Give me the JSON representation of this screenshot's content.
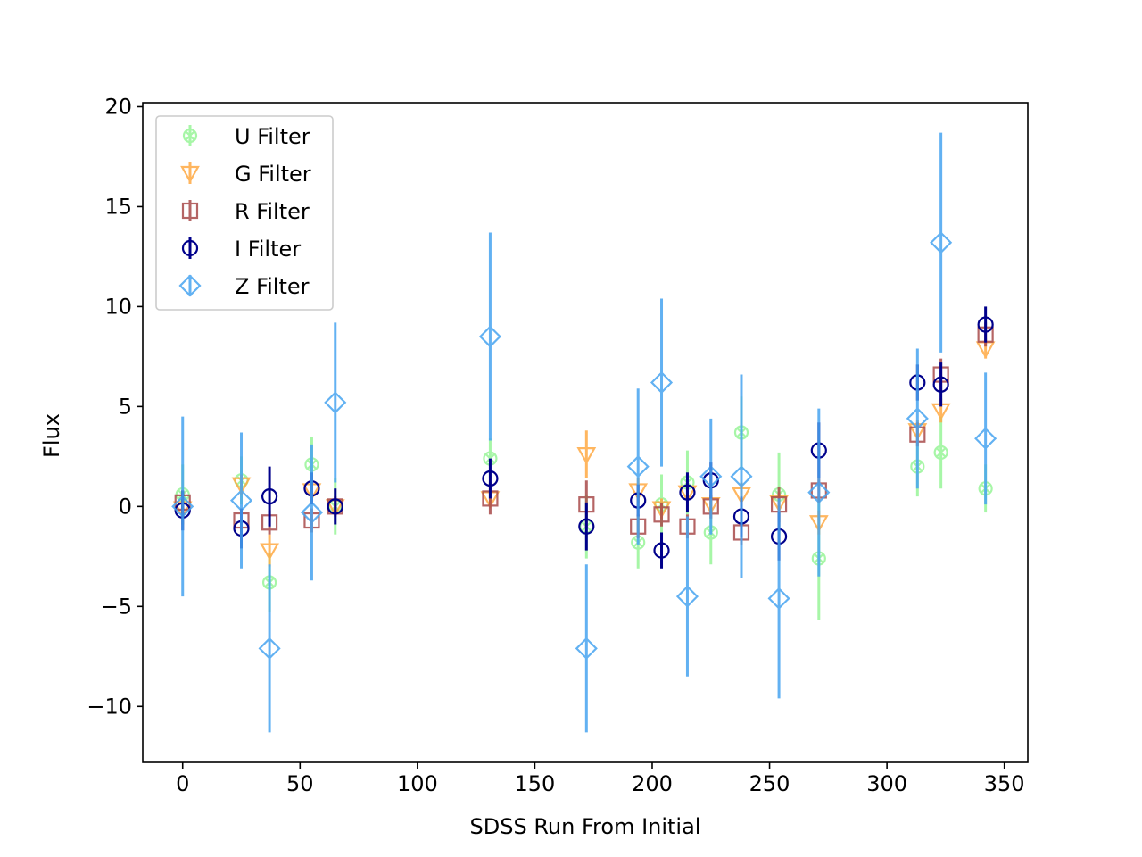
{
  "chart_data": {
    "type": "scatter",
    "title": "",
    "xlabel": "SDSS Run From Initial",
    "ylabel": "Flux",
    "xlim": [
      -17,
      360
    ],
    "ylim": [
      -12.8,
      20.2
    ],
    "xticks": [
      0,
      50,
      100,
      150,
      200,
      250,
      300,
      350
    ],
    "yticks": [
      -10,
      -5,
      0,
      5,
      10,
      15,
      20
    ],
    "xtick_labels": [
      "0",
      "50",
      "100",
      "150",
      "200",
      "250",
      "300",
      "350"
    ],
    "ytick_labels": [
      "−10",
      "−5",
      "0",
      "5",
      "10",
      "15",
      "20"
    ],
    "grid": false,
    "legend_position": "upper left",
    "error_bars": true,
    "series": [
      {
        "name": "U Filter",
        "marker": "x-circle",
        "color": "#98f598",
        "alpha": 0.85,
        "points": [
          {
            "x": 0,
            "y": 0.6,
            "err": 1.5
          },
          {
            "x": 25,
            "y": 1.3,
            "err": 1.2
          },
          {
            "x": 37,
            "y": -3.8,
            "err": 1.5
          },
          {
            "x": 55,
            "y": 2.1,
            "err": 1.4
          },
          {
            "x": 65,
            "y": 0.0,
            "err": 1.4
          },
          {
            "x": 131,
            "y": 2.4,
            "err": 1.0
          },
          {
            "x": 172,
            "y": -1.0,
            "err": 1.6
          },
          {
            "x": 194,
            "y": -1.8,
            "err": 1.3
          },
          {
            "x": 204,
            "y": 0.1,
            "err": 1.5
          },
          {
            "x": 215,
            "y": 1.2,
            "err": 1.6
          },
          {
            "x": 225,
            "y": -1.3,
            "err": 1.6
          },
          {
            "x": 238,
            "y": 3.7,
            "err": 1.8
          },
          {
            "x": 254,
            "y": 0.6,
            "err": 2.1
          },
          {
            "x": 271,
            "y": -2.6,
            "err": 3.1
          },
          {
            "x": 313,
            "y": 2.0,
            "err": 1.5
          },
          {
            "x": 323,
            "y": 2.7,
            "err": 1.8
          },
          {
            "x": 342,
            "y": 0.9,
            "err": 1.2
          }
        ]
      },
      {
        "name": "G Filter",
        "marker": "triangle-down",
        "color": "#ffaa44",
        "alpha": 0.85,
        "points": [
          {
            "x": 0,
            "y": -0.1,
            "err": 0.5
          },
          {
            "x": 25,
            "y": 1.1,
            "err": 0.5
          },
          {
            "x": 37,
            "y": -2.2,
            "err": 0.8
          },
          {
            "x": 55,
            "y": 0.8,
            "err": 0.4
          },
          {
            "x": 65,
            "y": 0.0,
            "err": 0.4
          },
          {
            "x": 131,
            "y": 0.4,
            "err": 0.4
          },
          {
            "x": 172,
            "y": 2.6,
            "err": 1.2
          },
          {
            "x": 194,
            "y": 0.8,
            "err": 0.6
          },
          {
            "x": 204,
            "y": -0.1,
            "err": 0.5
          },
          {
            "x": 215,
            "y": 0.7,
            "err": 0.5
          },
          {
            "x": 225,
            "y": 0.1,
            "err": 0.5
          },
          {
            "x": 238,
            "y": 0.6,
            "err": 0.6
          },
          {
            "x": 254,
            "y": 0.2,
            "err": 0.5
          },
          {
            "x": 271,
            "y": -0.8,
            "err": 0.6
          },
          {
            "x": 313,
            "y": 3.8,
            "err": 0.5
          },
          {
            "x": 323,
            "y": 4.8,
            "err": 0.6
          },
          {
            "x": 342,
            "y": 7.9,
            "err": 0.5
          }
        ]
      },
      {
        "name": "R Filter",
        "marker": "square",
        "color": "#a94b4b",
        "alpha": 0.85,
        "points": [
          {
            "x": 0,
            "y": 0.2,
            "err": 0.6
          },
          {
            "x": 25,
            "y": -0.7,
            "err": 0.6
          },
          {
            "x": 37,
            "y": -0.8,
            "err": 0.6
          },
          {
            "x": 55,
            "y": -0.7,
            "err": 0.6
          },
          {
            "x": 65,
            "y": 0.0,
            "err": 0.5
          },
          {
            "x": 131,
            "y": 0.4,
            "err": 0.8
          },
          {
            "x": 172,
            "y": 0.1,
            "err": 1.2
          },
          {
            "x": 194,
            "y": -1.0,
            "err": 0.6
          },
          {
            "x": 204,
            "y": -0.4,
            "err": 0.6
          },
          {
            "x": 215,
            "y": -1.0,
            "err": 0.6
          },
          {
            "x": 225,
            "y": 0.0,
            "err": 0.6
          },
          {
            "x": 238,
            "y": -1.3,
            "err": 0.6
          },
          {
            "x": 254,
            "y": 0.1,
            "err": 0.9
          },
          {
            "x": 271,
            "y": 0.8,
            "err": 0.6
          },
          {
            "x": 313,
            "y": 3.6,
            "err": 0.6
          },
          {
            "x": 323,
            "y": 6.6,
            "err": 0.8
          },
          {
            "x": 342,
            "y": 8.6,
            "err": 0.6
          }
        ]
      },
      {
        "name": "I Filter",
        "marker": "circle",
        "color": "#00008b",
        "alpha": 1.0,
        "points": [
          {
            "x": 0,
            "y": -0.2,
            "err": 1.0
          },
          {
            "x": 25,
            "y": -1.1,
            "err": 1.0
          },
          {
            "x": 37,
            "y": 0.5,
            "err": 1.5
          },
          {
            "x": 55,
            "y": 0.9,
            "err": 0.8
          },
          {
            "x": 65,
            "y": 0.0,
            "err": 0.9
          },
          {
            "x": 131,
            "y": 1.4,
            "err": 1.0
          },
          {
            "x": 172,
            "y": -1.0,
            "err": 1.2
          },
          {
            "x": 194,
            "y": 0.3,
            "err": 0.8
          },
          {
            "x": 204,
            "y": -2.2,
            "err": 0.9
          },
          {
            "x": 215,
            "y": 0.7,
            "err": 1.0
          },
          {
            "x": 225,
            "y": 1.3,
            "err": 0.9
          },
          {
            "x": 238,
            "y": -0.5,
            "err": 1.0
          },
          {
            "x": 254,
            "y": -1.5,
            "err": 1.2
          },
          {
            "x": 271,
            "y": 2.8,
            "err": 1.4
          },
          {
            "x": 313,
            "y": 6.2,
            "err": 0.9
          },
          {
            "x": 323,
            "y": 6.1,
            "err": 1.1
          },
          {
            "x": 342,
            "y": 9.1,
            "err": 0.9
          }
        ]
      },
      {
        "name": "Z Filter",
        "marker": "diamond",
        "color": "#47a4f0",
        "alpha": 0.85,
        "points": [
          {
            "x": 0,
            "y": 0.0,
            "err": 4.5
          },
          {
            "x": 25,
            "y": 0.3,
            "err": 3.4
          },
          {
            "x": 37,
            "y": -7.1,
            "err": 4.2
          },
          {
            "x": 55,
            "y": -0.3,
            "err": 3.4
          },
          {
            "x": 65,
            "y": 5.2,
            "err": 4.0
          },
          {
            "x": 131,
            "y": 8.5,
            "err": 5.2
          },
          {
            "x": 172,
            "y": -7.1,
            "err": 4.2
          },
          {
            "x": 194,
            "y": 2.0,
            "err": 3.9
          },
          {
            "x": 204,
            "y": 6.2,
            "err": 4.2
          },
          {
            "x": 215,
            "y": -4.5,
            "err": 4.0
          },
          {
            "x": 225,
            "y": 1.5,
            "err": 2.9
          },
          {
            "x": 238,
            "y": 1.5,
            "err": 5.1
          },
          {
            "x": 254,
            "y": -4.6,
            "err": 5.0
          },
          {
            "x": 271,
            "y": 0.7,
            "err": 4.2
          },
          {
            "x": 313,
            "y": 4.4,
            "err": 3.5
          },
          {
            "x": 323,
            "y": 13.2,
            "err": 5.5
          },
          {
            "x": 342,
            "y": 3.4,
            "err": 3.3
          }
        ]
      }
    ]
  }
}
